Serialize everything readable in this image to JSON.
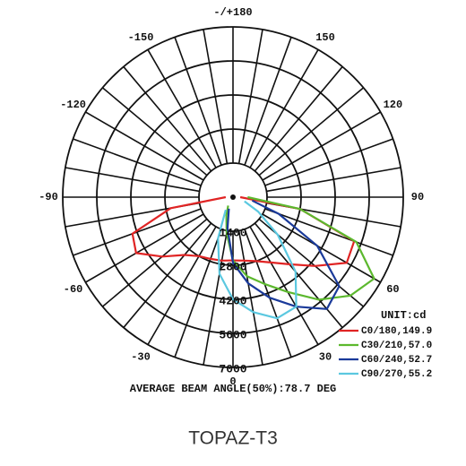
{
  "chart_data": {
    "type": "polar",
    "x": [
      -90,
      -80,
      -70,
      -60,
      -50,
      -40,
      -30,
      -20,
      -10,
      0,
      10,
      20,
      30,
      40,
      50,
      60,
      70,
      80,
      90
    ],
    "series": [
      {
        "name": "C0/180,149.9",
        "color": "#e02424",
        "values": [
          300,
          2600,
          4400,
          4600,
          3800,
          3100,
          2800,
          2700,
          2650,
          2600,
          2650,
          2800,
          3100,
          3600,
          4400,
          5400,
          5300,
          2800,
          300
        ]
      },
      {
        "name": "C30/210,57.0",
        "color": "#5cb82e",
        "values": [
          null,
          null,
          null,
          null,
          null,
          null,
          400,
          800,
          1500,
          2600,
          3300,
          3800,
          4500,
          5500,
          6300,
          6700,
          5400,
          2800,
          600
        ]
      },
      {
        "name": "C60/240,52.7",
        "color": "#1a3a9a",
        "values": [
          null,
          null,
          null,
          null,
          null,
          null,
          null,
          500,
          1300,
          2700,
          3600,
          4400,
          5200,
          6000,
          5700,
          4000,
          2000,
          800,
          null
        ]
      },
      {
        "name": "C90/270,55.2",
        "color": "#5bc8e0",
        "values": [
          null,
          null,
          null,
          null,
          null,
          null,
          600,
          1800,
          3200,
          4200,
          4800,
          5300,
          5200,
          4000,
          2400,
          1200,
          500,
          null,
          null
        ]
      }
    ],
    "xticks": [
      {
        "value": 180,
        "label": "-/+180"
      },
      150,
      -150,
      120,
      -120,
      90,
      -90,
      60,
      -60,
      30,
      -30,
      0
    ],
    "ylim": [
      0,
      7000
    ],
    "yticks": [
      1400,
      2800,
      4200,
      5600,
      7000
    ],
    "grid": true,
    "legend": "lower right",
    "legend_title": "UNIT:cd",
    "annotation": "AVERAGE BEAM ANGLE(50%):78.7 DEG",
    "title": "TOPAZ-T3"
  }
}
